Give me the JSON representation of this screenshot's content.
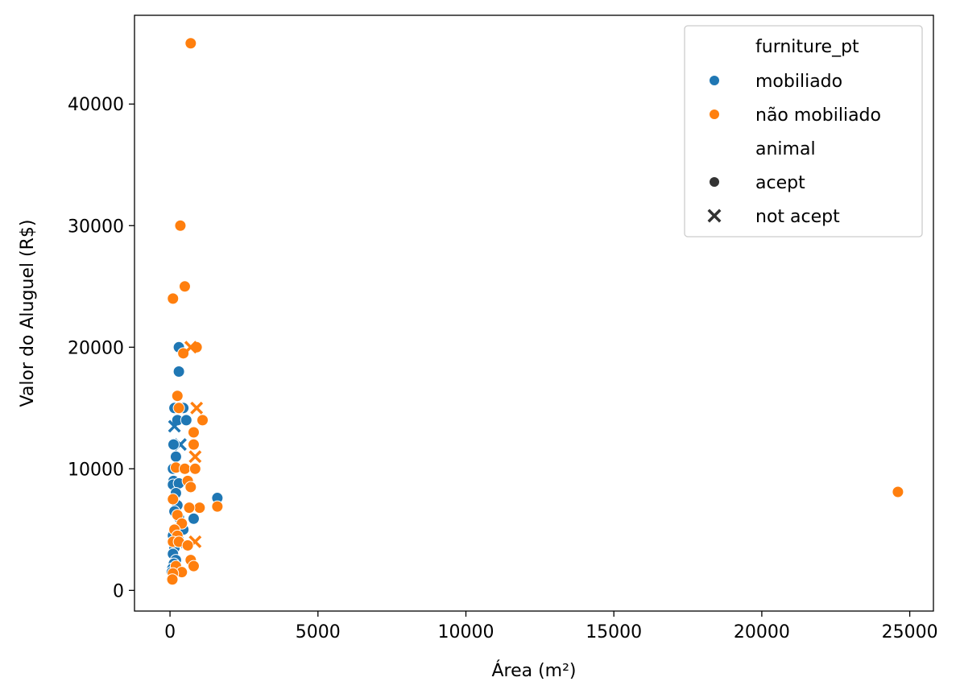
{
  "chart_data": {
    "type": "scatter",
    "xlabel": "Área (m²)",
    "ylabel": "Valor do Aluguel (R$)",
    "xlim": [
      -1200,
      25800
    ],
    "ylim": [
      -1700,
      47300
    ],
    "x_ticks": [
      0,
      5000,
      10000,
      15000,
      20000,
      25000
    ],
    "y_ticks": [
      0,
      10000,
      20000,
      30000,
      40000
    ],
    "x_tick_labels": [
      "0",
      "5000",
      "10000",
      "15000",
      "20000",
      "25000"
    ],
    "y_tick_labels": [
      "0",
      "10000",
      "20000",
      "30000",
      "40000"
    ],
    "grid": false,
    "legend_placement": "top-right",
    "legend": {
      "hue_title": "furniture_pt",
      "hue_entries": [
        {
          "label": "mobiliado",
          "color": "#1f77b4"
        },
        {
          "label": "não mobiliado",
          "color": "#ff7f0e"
        }
      ],
      "style_title": "animal",
      "style_entries": [
        {
          "label": "acept",
          "marker": "circle"
        },
        {
          "label": "not acept",
          "marker": "x"
        }
      ]
    },
    "series": [
      {
        "name": "mobiliado",
        "color": "#1f77b4",
        "points": [
          {
            "x": 300,
            "y": 20000,
            "m": "o"
          },
          {
            "x": 300,
            "y": 18000,
            "m": "o"
          },
          {
            "x": 150,
            "y": 15000,
            "m": "o"
          },
          {
            "x": 450,
            "y": 15000,
            "m": "o"
          },
          {
            "x": 250,
            "y": 14000,
            "m": "o"
          },
          {
            "x": 550,
            "y": 14000,
            "m": "o"
          },
          {
            "x": 150,
            "y": 13500,
            "m": "x"
          },
          {
            "x": 350,
            "y": 12000,
            "m": "x"
          },
          {
            "x": 120,
            "y": 12000,
            "m": "o"
          },
          {
            "x": 200,
            "y": 11000,
            "m": "o"
          },
          {
            "x": 100,
            "y": 10000,
            "m": "o"
          },
          {
            "x": 120,
            "y": 9000,
            "m": "o"
          },
          {
            "x": 100,
            "y": 8700,
            "m": "o"
          },
          {
            "x": 300,
            "y": 8800,
            "m": "o"
          },
          {
            "x": 200,
            "y": 8000,
            "m": "o"
          },
          {
            "x": 1600,
            "y": 7600,
            "m": "o"
          },
          {
            "x": 250,
            "y": 7000,
            "m": "o"
          },
          {
            "x": 150,
            "y": 6500,
            "m": "o"
          },
          {
            "x": 800,
            "y": 5900,
            "m": "o"
          },
          {
            "x": 300,
            "y": 6000,
            "m": "o"
          },
          {
            "x": 450,
            "y": 5000,
            "m": "o"
          },
          {
            "x": 100,
            "y": 4500,
            "m": "o"
          },
          {
            "x": 250,
            "y": 4000,
            "m": "x"
          },
          {
            "x": 150,
            "y": 3500,
            "m": "o"
          },
          {
            "x": 100,
            "y": 3000,
            "m": "o"
          },
          {
            "x": 200,
            "y": 2500,
            "m": "o"
          },
          {
            "x": 130,
            "y": 2200,
            "m": "o"
          },
          {
            "x": 80,
            "y": 1800,
            "m": "o"
          },
          {
            "x": 60,
            "y": 1500,
            "m": "o"
          },
          {
            "x": 90,
            "y": 1200,
            "m": "o"
          },
          {
            "x": 60,
            "y": 900,
            "m": "o"
          }
        ]
      },
      {
        "name": "não mobiliado",
        "color": "#ff7f0e",
        "points": [
          {
            "x": 700,
            "y": 45000,
            "m": "o"
          },
          {
            "x": 350,
            "y": 30000,
            "m": "o"
          },
          {
            "x": 500,
            "y": 25000,
            "m": "o"
          },
          {
            "x": 100,
            "y": 24000,
            "m": "o"
          },
          {
            "x": 900,
            "y": 20000,
            "m": "o"
          },
          {
            "x": 450,
            "y": 19500,
            "m": "o"
          },
          {
            "x": 700,
            "y": 20000,
            "m": "x"
          },
          {
            "x": 250,
            "y": 16000,
            "m": "o"
          },
          {
            "x": 300,
            "y": 15000,
            "m": "o"
          },
          {
            "x": 900,
            "y": 15000,
            "m": "x"
          },
          {
            "x": 1100,
            "y": 14000,
            "m": "o"
          },
          {
            "x": 800,
            "y": 13000,
            "m": "o"
          },
          {
            "x": 800,
            "y": 12000,
            "m": "o"
          },
          {
            "x": 850,
            "y": 11000,
            "m": "x"
          },
          {
            "x": 200,
            "y": 10100,
            "m": "o"
          },
          {
            "x": 500,
            "y": 10000,
            "m": "o"
          },
          {
            "x": 850,
            "y": 10000,
            "m": "o"
          },
          {
            "x": 600,
            "y": 9000,
            "m": "o"
          },
          {
            "x": 700,
            "y": 8500,
            "m": "o"
          },
          {
            "x": 24600,
            "y": 8100,
            "m": "o"
          },
          {
            "x": 100,
            "y": 7500,
            "m": "o"
          },
          {
            "x": 1600,
            "y": 6900,
            "m": "o"
          },
          {
            "x": 1000,
            "y": 6800,
            "m": "o"
          },
          {
            "x": 650,
            "y": 6800,
            "m": "o"
          },
          {
            "x": 250,
            "y": 6200,
            "m": "o"
          },
          {
            "x": 400,
            "y": 5500,
            "m": "o"
          },
          {
            "x": 150,
            "y": 5000,
            "m": "o"
          },
          {
            "x": 250,
            "y": 4500,
            "m": "o"
          },
          {
            "x": 850,
            "y": 4000,
            "m": "x"
          },
          {
            "x": 100,
            "y": 4000,
            "m": "o"
          },
          {
            "x": 300,
            "y": 4000,
            "m": "o"
          },
          {
            "x": 600,
            "y": 3700,
            "m": "o"
          },
          {
            "x": 700,
            "y": 2500,
            "m": "o"
          },
          {
            "x": 800,
            "y": 2000,
            "m": "o"
          },
          {
            "x": 200,
            "y": 2000,
            "m": "o"
          },
          {
            "x": 400,
            "y": 1500,
            "m": "o"
          },
          {
            "x": 100,
            "y": 1400,
            "m": "o"
          },
          {
            "x": 80,
            "y": 900,
            "m": "o"
          }
        ]
      }
    ]
  }
}
